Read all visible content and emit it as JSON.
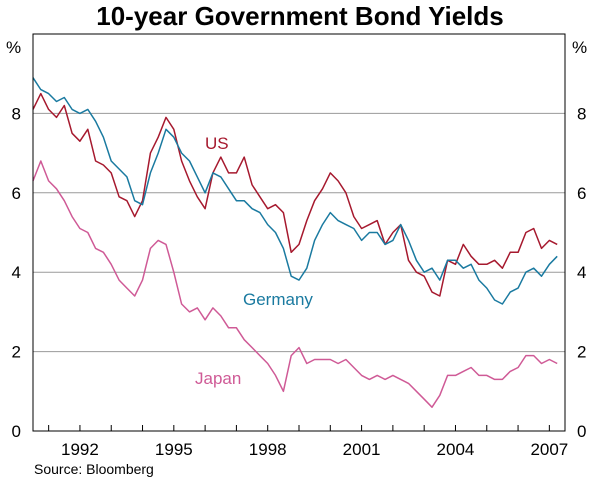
{
  "chart_data": {
    "type": "line",
    "title": "10-year Government Bond Yields",
    "source": "Source: Bloomberg",
    "ylabel_left": "%",
    "ylabel_right": "%",
    "ylim": [
      0,
      10
    ],
    "yticks": [
      0,
      2,
      4,
      6,
      8
    ],
    "xlim": [
      1990.5,
      2007.5
    ],
    "xticks": [
      1992,
      1995,
      1998,
      2001,
      2004,
      2007
    ],
    "grid": "horizontal",
    "series": [
      {
        "name": "US",
        "color": "#a6192e",
        "x": [
          1990.5,
          1990.75,
          1991.0,
          1991.25,
          1991.5,
          1991.75,
          1992.0,
          1992.25,
          1992.5,
          1992.75,
          1993.0,
          1993.25,
          1993.5,
          1993.75,
          1994.0,
          1994.25,
          1994.5,
          1994.75,
          1995.0,
          1995.25,
          1995.5,
          1995.75,
          1996.0,
          1996.25,
          1996.5,
          1996.75,
          1997.0,
          1997.25,
          1997.5,
          1997.75,
          1998.0,
          1998.25,
          1998.5,
          1998.75,
          1999.0,
          1999.25,
          1999.5,
          1999.75,
          2000.0,
          2000.25,
          2000.5,
          2000.75,
          2001.0,
          2001.25,
          2001.5,
          2001.75,
          2002.0,
          2002.25,
          2002.5,
          2002.75,
          2003.0,
          2003.25,
          2003.5,
          2003.75,
          2004.0,
          2004.25,
          2004.5,
          2004.75,
          2005.0,
          2005.25,
          2005.5,
          2005.75,
          2006.0,
          2006.25,
          2006.5,
          2006.75,
          2007.0,
          2007.25
        ],
        "values": [
          8.1,
          8.5,
          8.1,
          7.9,
          8.2,
          7.5,
          7.3,
          7.6,
          6.8,
          6.7,
          6.5,
          5.9,
          5.8,
          5.4,
          5.8,
          7.0,
          7.4,
          7.9,
          7.6,
          6.8,
          6.3,
          5.9,
          5.6,
          6.5,
          6.9,
          6.5,
          6.5,
          6.9,
          6.2,
          5.9,
          5.6,
          5.7,
          5.5,
          4.5,
          4.7,
          5.3,
          5.8,
          6.1,
          6.5,
          6.3,
          6.0,
          5.4,
          5.1,
          5.2,
          5.3,
          4.7,
          5.0,
          5.2,
          4.3,
          4.0,
          3.9,
          3.5,
          3.4,
          4.3,
          4.2,
          4.7,
          4.4,
          4.2,
          4.2,
          4.3,
          4.1,
          4.5,
          4.5,
          5.0,
          5.1,
          4.6,
          4.8,
          4.7
        ]
      },
      {
        "name": "Germany",
        "color": "#1a7aa0",
        "x": [
          1990.5,
          1990.75,
          1991.0,
          1991.25,
          1991.5,
          1991.75,
          1992.0,
          1992.25,
          1992.5,
          1992.75,
          1993.0,
          1993.25,
          1993.5,
          1993.75,
          1994.0,
          1994.25,
          1994.5,
          1994.75,
          1995.0,
          1995.25,
          1995.5,
          1995.75,
          1996.0,
          1996.25,
          1996.5,
          1996.75,
          1997.0,
          1997.25,
          1997.5,
          1997.75,
          1998.0,
          1998.25,
          1998.5,
          1998.75,
          1999.0,
          1999.25,
          1999.5,
          1999.75,
          2000.0,
          2000.25,
          2000.5,
          2000.75,
          2001.0,
          2001.25,
          2001.5,
          2001.75,
          2002.0,
          2002.25,
          2002.5,
          2002.75,
          2003.0,
          2003.25,
          2003.5,
          2003.75,
          2004.0,
          2004.25,
          2004.5,
          2004.75,
          2005.0,
          2005.25,
          2005.5,
          2005.75,
          2006.0,
          2006.25,
          2006.5,
          2006.75,
          2007.0,
          2007.25
        ],
        "values": [
          8.9,
          8.6,
          8.5,
          8.3,
          8.4,
          8.1,
          8.0,
          8.1,
          7.8,
          7.4,
          6.8,
          6.6,
          6.4,
          5.8,
          5.7,
          6.5,
          7.0,
          7.6,
          7.4,
          7.0,
          6.8,
          6.4,
          6.0,
          6.5,
          6.4,
          6.1,
          5.8,
          5.8,
          5.6,
          5.5,
          5.2,
          5.0,
          4.6,
          3.9,
          3.8,
          4.1,
          4.8,
          5.2,
          5.5,
          5.3,
          5.2,
          5.1,
          4.8,
          5.0,
          5.0,
          4.7,
          4.8,
          5.2,
          4.8,
          4.3,
          4.0,
          4.1,
          3.8,
          4.3,
          4.3,
          4.1,
          4.2,
          3.8,
          3.6,
          3.3,
          3.2,
          3.5,
          3.6,
          4.0,
          4.1,
          3.9,
          4.2,
          4.4
        ]
      },
      {
        "name": "Japan",
        "color": "#cf5a96",
        "x": [
          1990.5,
          1990.75,
          1991.0,
          1991.25,
          1991.5,
          1991.75,
          1992.0,
          1992.25,
          1992.5,
          1992.75,
          1993.0,
          1993.25,
          1993.5,
          1993.75,
          1994.0,
          1994.25,
          1994.5,
          1994.75,
          1995.0,
          1995.25,
          1995.5,
          1995.75,
          1996.0,
          1996.25,
          1996.5,
          1996.75,
          1997.0,
          1997.25,
          1997.5,
          1997.75,
          1998.0,
          1998.25,
          1998.5,
          1998.75,
          1999.0,
          1999.25,
          1999.5,
          1999.75,
          2000.0,
          2000.25,
          2000.5,
          2000.75,
          2001.0,
          2001.25,
          2001.5,
          2001.75,
          2002.0,
          2002.25,
          2002.5,
          2002.75,
          2003.0,
          2003.25,
          2003.5,
          2003.75,
          2004.0,
          2004.25,
          2004.5,
          2004.75,
          2005.0,
          2005.25,
          2005.5,
          2005.75,
          2006.0,
          2006.25,
          2006.5,
          2006.75,
          2007.0,
          2007.25
        ],
        "values": [
          6.3,
          6.8,
          6.3,
          6.1,
          5.8,
          5.4,
          5.1,
          5.0,
          4.6,
          4.5,
          4.2,
          3.8,
          3.6,
          3.4,
          3.8,
          4.6,
          4.8,
          4.7,
          4.0,
          3.2,
          3.0,
          3.1,
          2.8,
          3.1,
          2.9,
          2.6,
          2.6,
          2.3,
          2.1,
          1.9,
          1.7,
          1.4,
          1.0,
          1.9,
          2.1,
          1.7,
          1.8,
          1.8,
          1.8,
          1.7,
          1.8,
          1.6,
          1.4,
          1.3,
          1.4,
          1.3,
          1.4,
          1.3,
          1.2,
          1.0,
          0.8,
          0.6,
          0.9,
          1.4,
          1.4,
          1.5,
          1.6,
          1.4,
          1.4,
          1.3,
          1.3,
          1.5,
          1.6,
          1.9,
          1.9,
          1.7,
          1.8,
          1.7
        ]
      }
    ],
    "annotations": [
      {
        "text": "US",
        "series": "US"
      },
      {
        "text": "Germany",
        "series": "Germany"
      },
      {
        "text": "Japan",
        "series": "Japan"
      }
    ]
  }
}
